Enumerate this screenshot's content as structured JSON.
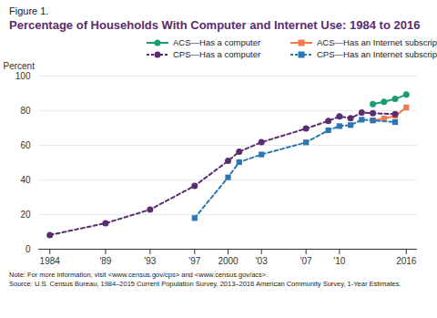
{
  "chart_data": {
    "type": "line",
    "figure": "Figure 1.",
    "title": "Percentage of Households With Computer and Internet Use: 1984 to 2016",
    "y_label": "Percent",
    "notes": [
      "Note: For more information, visit <www.census.gov/cps> and <www.census.gov/acs>.",
      "Source: U.S. Census Bureau, 1984–2015 Current Population Survey, 2013–2016 American Community Survey, 1-Year Estimates."
    ],
    "xlim": [
      1983,
      2017
    ],
    "xticks": [
      1984,
      {
        "value": 1989,
        "label": "'89"
      },
      {
        "value": 1993,
        "label": "'93"
      },
      {
        "value": 1997,
        "label": "'97"
      },
      2000,
      {
        "value": 2003,
        "label": "'03"
      },
      {
        "value": 2007,
        "label": "'07"
      },
      {
        "value": 2010,
        "label": "'10"
      },
      2016
    ],
    "ylim": [
      0,
      100
    ],
    "yticks": [
      0,
      20,
      40,
      60,
      80,
      100
    ],
    "grid": true,
    "legend": "top",
    "series": [
      {
        "name": "ACS—Has a computer",
        "color": "#1a9e6e",
        "marker": "circle",
        "line_style": "solid",
        "x": [
          2013,
          2014,
          2015,
          2016
        ],
        "values": [
          83.8,
          85.1,
          86.8,
          89.3
        ]
      },
      {
        "name": "ACS—Has an Internet subscription",
        "color": "#f07a4a",
        "marker": "square",
        "line_style": "solid",
        "x": [
          2013,
          2014,
          2015,
          2016
        ],
        "values": [
          74.4,
          75.5,
          77.0,
          81.9
        ]
      },
      {
        "name": "CPS—Has a computer",
        "color": "#5b2c6f",
        "marker": "circle",
        "line_style": "dashed",
        "x": [
          1984,
          1989,
          1993,
          1997,
          2000,
          2001,
          2003,
          2007,
          2009,
          2010,
          2011,
          2012,
          2013,
          2015
        ],
        "values": [
          8.2,
          15.0,
          22.9,
          36.6,
          51.0,
          56.3,
          61.8,
          69.7,
          74.1,
          76.7,
          75.6,
          78.9,
          78.5,
          78.0
        ]
      },
      {
        "name": "CPS—Has an Internet subscription",
        "color": "#2a77b5",
        "marker": "square",
        "line_style": "dashed",
        "x": [
          1997,
          2000,
          2001,
          2003,
          2007,
          2009,
          2010,
          2011,
          2012,
          2013,
          2015
        ],
        "values": [
          18.0,
          41.5,
          50.3,
          54.7,
          61.7,
          68.7,
          71.1,
          71.7,
          74.8,
          74.4,
          73.4
        ]
      }
    ]
  }
}
